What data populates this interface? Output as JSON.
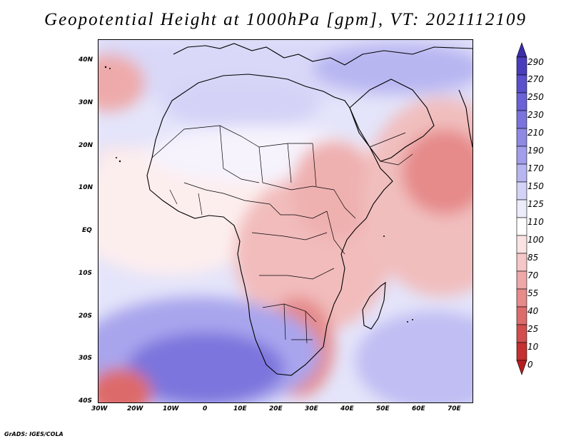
{
  "title": "Geopotential Height at 1000hPa [gpm], VT: 2021112109",
  "credit": "GrADS: IGES/COLA",
  "map": {
    "lat_ticks": [
      "40N",
      "30N",
      "20N",
      "10N",
      "EQ",
      "10S",
      "20S",
      "30S",
      "40S"
    ],
    "lon_ticks": [
      "30W",
      "20W",
      "10W",
      "0",
      "10E",
      "20E",
      "30E",
      "40E",
      "50E",
      "60E",
      "70E"
    ]
  },
  "colorbar": {
    "labels": [
      "290",
      "270",
      "250",
      "230",
      "210",
      "190",
      "170",
      "150",
      "125",
      "110",
      "100",
      "85",
      "70",
      "55",
      "40",
      "25",
      "10",
      "0"
    ],
    "colors": [
      "#3c2daa",
      "#4a3dbd",
      "#5a4fcc",
      "#6a62d6",
      "#7b74dd",
      "#8e89e4",
      "#a29eeb",
      "#b8b6f1",
      "#d4d3f7",
      "#ececfb",
      "#ffffff",
      "#fbe3e3",
      "#f5c7c7",
      "#eea8a8",
      "#e68a8a",
      "#dd6b6b",
      "#d24d4d",
      "#c53030",
      "#b51f1f"
    ]
  }
}
